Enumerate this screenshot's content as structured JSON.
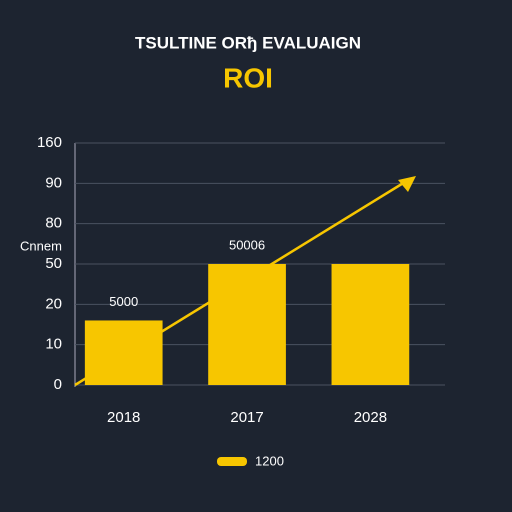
{
  "chart_data": {
    "type": "bar",
    "title": "TSULTINE ORђ EVALUAIGN",
    "subtitle": "ROI",
    "y_label": "Cnnem",
    "categories": [
      "2018",
      "2017",
      "2028"
    ],
    "series": [
      {
        "name": "1200",
        "color": "#f7c600",
        "values": [
          16,
          50,
          50
        ]
      }
    ],
    "annotations": [
      "5000",
      "50006"
    ],
    "ylim": [
      0,
      160
    ],
    "yticks": [
      0,
      10,
      20,
      50,
      80,
      90,
      160
    ],
    "grid": true
  }
}
